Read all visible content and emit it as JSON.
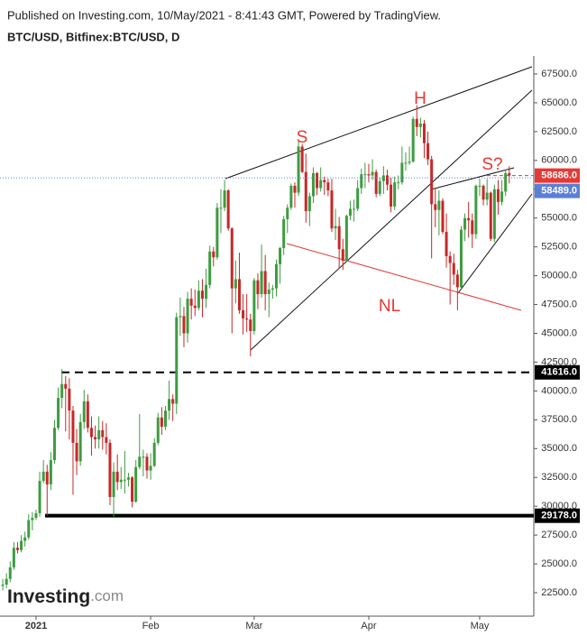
{
  "header": {
    "published": "Published on Investing.com, 10/May/2021 - 8:41:43 GMT, Powered by TradingView.",
    "symbol": "BTC/USD, Bitfinex:BTC/USD, D"
  },
  "logo": {
    "name": "Investing",
    "suffix": ".com"
  },
  "chart_data": {
    "type": "candlestick",
    "categories": [
      null,
      null,
      null,
      null,
      null,
      null,
      null,
      null,
      null,
      null,
      null,
      null,
      null,
      null,
      null,
      null,
      null,
      null,
      null,
      null,
      null,
      null,
      null,
      null,
      null,
      null,
      null,
      null,
      null,
      null,
      null,
      null,
      null,
      null,
      null,
      null,
      null,
      null,
      null,
      null,
      null,
      null,
      null,
      null,
      null,
      null,
      null,
      null,
      null,
      null,
      null,
      null,
      null,
      null,
      null,
      null,
      null,
      null,
      null,
      null,
      null,
      null,
      null,
      null,
      null,
      null,
      null,
      null,
      null,
      null,
      null,
      null,
      null,
      null,
      null,
      null,
      null,
      null,
      null,
      null,
      null,
      null,
      null,
      null,
      null,
      null,
      null,
      null,
      null,
      null,
      null,
      null,
      null,
      null,
      null,
      null,
      null,
      null,
      null,
      null,
      null,
      null,
      null,
      null,
      null,
      null,
      null,
      null,
      null,
      null,
      null,
      null,
      null,
      null,
      null,
      null,
      null,
      null,
      null,
      null,
      null,
      null,
      null,
      null,
      null,
      null,
      null,
      null,
      null,
      null,
      null,
      null,
      null,
      null,
      null,
      null,
      null,
      null
    ],
    "open": [
      23100,
      23200,
      23700,
      24700,
      26400,
      26200,
      27000,
      27300,
      28800,
      29000,
      29400,
      32200,
      33000,
      31900,
      34000,
      36800,
      39400,
      40600,
      40200,
      38300,
      35500,
      33900,
      37300,
      39100,
      36800,
      36000,
      35800,
      36600,
      36000,
      35500,
      30800,
      33000,
      32100,
      32300,
      32300,
      32500,
      30400,
      33400,
      34300,
      34300,
      33100,
      33500,
      35500,
      37700,
      36900,
      38300,
      39300,
      38900,
      46400,
      46500,
      45000,
      48000,
      47400,
      47200,
      48700,
      48000,
      49200,
      52100,
      51600,
      55900,
      55900,
      57400,
      54100,
      48900,
      49700,
      47000,
      46300,
      46200,
      45200,
      49600,
      48400,
      50400,
      48400,
      48800,
      48900,
      51000,
      52400,
      54900,
      55900,
      57800,
      57200,
      61200,
      59000,
      55600,
      56900,
      58900,
      57600,
      58300,
      58100,
      57400,
      54100,
      54300,
      52300,
      51300,
      55200,
      55800,
      55800,
      57600,
      58800,
      58800,
      58700,
      59000,
      57100,
      58200,
      58700,
      57900,
      56000,
      58100,
      58100,
      59800,
      59800,
      59900,
      63600,
      62900,
      63200,
      61500,
      60100,
      56200,
      55700,
      56500,
      53800,
      51700,
      51100,
      50100,
      49000,
      54000,
      55000,
      54800,
      53600,
      57800,
      57800,
      56600,
      57200,
      53200,
      57500,
      56400,
      57300,
      58900
    ],
    "high": [
      23700,
      24200,
      25200,
      26900,
      26900,
      27500,
      27800,
      29300,
      29500,
      29700,
      33000,
      34000,
      33600,
      34700,
      37500,
      40300,
      41900,
      41300,
      41100,
      38700,
      36700,
      38000,
      40100,
      39700,
      37800,
      37000,
      37800,
      37400,
      37200,
      35800,
      33800,
      34500,
      33400,
      34800,
      32900,
      32600,
      34000,
      38000,
      34900,
      34600,
      34600,
      35900,
      38100,
      38600,
      38700,
      40900,
      39700,
      46800,
      48100,
      47300,
      48600,
      48900,
      48800,
      49600,
      49700,
      50600,
      52600,
      52500,
      56300,
      57500,
      58300,
      57500,
      54200,
      51300,
      52000,
      48400,
      48400,
      46700,
      49800,
      50200,
      52700,
      51800,
      49400,
      49200,
      51400,
      52500,
      55200,
      56200,
      58000,
      58100,
      61700,
      61400,
      60600,
      57200,
      59400,
      59000,
      59400,
      58600,
      58400,
      58400,
      55800,
      55100,
      53200,
      55300,
      56500,
      56600,
      58300,
      59300,
      59800,
      59700,
      60100,
      59200,
      58500,
      59500,
      59200,
      58500,
      58600,
      58700,
      61200,
      60700,
      61200,
      63800,
      64800,
      63700,
      63500,
      62500,
      60400,
      57600,
      57400,
      56700,
      55400,
      52100,
      51900,
      50500,
      54300,
      55400,
      56400,
      55400,
      57900,
      58400,
      57900,
      58400,
      57300,
      57900,
      58300,
      58300,
      59200,
      59500
    ],
    "low": [
      22700,
      22900,
      23400,
      24500,
      25900,
      26000,
      26500,
      27100,
      27900,
      28800,
      29100,
      32000,
      29200,
      31400,
      33700,
      36600,
      38500,
      36500,
      35800,
      31000,
      32700,
      33500,
      36700,
      36400,
      34400,
      35000,
      35000,
      34900,
      34500,
      30100,
      29100,
      31400,
      31500,
      31100,
      31700,
      29900,
      30300,
      33200,
      32600,
      32400,
      32300,
      33400,
      35300,
      36200,
      36600,
      37500,
      37400,
      38000,
      44800,
      43800,
      44200,
      46200,
      46500,
      47000,
      46400,
      47200,
      48900,
      50800,
      51400,
      53700,
      55600,
      53900,
      45000,
      47600,
      46700,
      44900,
      45100,
      43000,
      44900,
      47100,
      48100,
      47000,
      46400,
      48000,
      48200,
      49300,
      51800,
      53700,
      55700,
      55900,
      56900,
      58900,
      54600,
      54300,
      56300,
      57000,
      57300,
      57000,
      56900,
      53800,
      53100,
      50600,
      50500,
      51200,
      54800,
      54700,
      55600,
      57100,
      57600,
      58100,
      58300,
      56800,
      56900,
      57100,
      57400,
      55500,
      55700,
      57500,
      57900,
      59100,
      59600,
      59800,
      62100,
      62000,
      60200,
      59600,
      51500,
      54200,
      53500,
      53600,
      50700,
      47500,
      49200,
      47000,
      48800,
      53000,
      53300,
      52400,
      53200,
      56900,
      56100,
      56100,
      53000,
      52900,
      55300,
      56100,
      56900,
      58000
    ],
    "close": [
      23200,
      23700,
      24700,
      26400,
      26200,
      27000,
      27300,
      28800,
      29000,
      29400,
      32200,
      33000,
      31900,
      34000,
      36800,
      39400,
      40600,
      40200,
      38300,
      35500,
      33900,
      37300,
      39100,
      36800,
      36000,
      35800,
      36600,
      36000,
      35500,
      30800,
      33000,
      32100,
      32300,
      32300,
      32500,
      30400,
      33400,
      34300,
      34300,
      33100,
      33500,
      35500,
      37700,
      36900,
      38300,
      39300,
      38900,
      46400,
      46500,
      45000,
      48000,
      47400,
      47200,
      48700,
      48000,
      49200,
      52100,
      51600,
      55900,
      55900,
      57400,
      54100,
      48900,
      49700,
      47000,
      46300,
      46200,
      45200,
      49600,
      48400,
      50400,
      48400,
      48800,
      48900,
      51000,
      52400,
      54900,
      55900,
      57800,
      57200,
      61200,
      59000,
      55600,
      56900,
      58900,
      57600,
      58300,
      58100,
      57400,
      54100,
      54300,
      52300,
      51300,
      55200,
      55800,
      55800,
      57600,
      58800,
      58800,
      58700,
      59000,
      57100,
      58200,
      58700,
      57900,
      56000,
      58100,
      58100,
      59800,
      59800,
      59900,
      63600,
      62900,
      63200,
      61500,
      60100,
      56200,
      55700,
      56500,
      53800,
      51700,
      51100,
      50100,
      49000,
      54000,
      55000,
      54800,
      53600,
      57800,
      57800,
      56600,
      57200,
      53200,
      57500,
      56400,
      57300,
      58900,
      58686
    ],
    "up_color": "#3d9c40",
    "down_color": "#c62828",
    "xlim": [
      -0.75,
      143.4
    ],
    "xticks": [
      {
        "value": 9,
        "label": "2021"
      },
      {
        "value": 40,
        "label": "Feb"
      },
      {
        "value": 68,
        "label": "Mar"
      },
      {
        "value": 99,
        "label": "Apr"
      },
      {
        "value": 129,
        "label": "May"
      }
    ],
    "ylim": [
      20466,
      69065
    ],
    "yticks": [
      {
        "value": 22500,
        "label": "22500.0"
      },
      {
        "value": 25000,
        "label": "25000.0"
      },
      {
        "value": 27500,
        "label": "27500.0"
      },
      {
        "value": 30000,
        "label": "30000.0"
      },
      {
        "value": 32500,
        "label": "32500.0"
      },
      {
        "value": 35000,
        "label": "35000.0"
      },
      {
        "value": 37500,
        "label": "37500.0"
      },
      {
        "value": 40000,
        "label": "40000.0"
      },
      {
        "value": 42500,
        "label": "42500.0"
      },
      {
        "value": 45000,
        "label": "45000.0"
      },
      {
        "value": 47500,
        "label": "47500.0"
      },
      {
        "value": 50000,
        "label": "50000.0"
      },
      {
        "value": 52500,
        "label": "52500.0"
      },
      {
        "value": 55000,
        "label": "55000.0"
      },
      {
        "value": 57500,
        "label": "57500.0"
      },
      {
        "value": 60000,
        "label": "60000.0"
      },
      {
        "value": 62500,
        "label": "62500.0"
      },
      {
        "value": 65000,
        "label": "65000.0"
      },
      {
        "value": 67500,
        "label": "67500.0"
      }
    ],
    "levels": [
      {
        "value": 41616,
        "label": "41616.0",
        "style": "dashed"
      },
      {
        "value": 29178,
        "label": "29178.0",
        "style": "thick"
      }
    ],
    "price_tags": [
      {
        "value": 58686,
        "label": "58686.0",
        "color": "#e53935"
      },
      {
        "value": 58489,
        "label": "58489.0",
        "color": "#5b7fd6"
      }
    ],
    "annotations": {
      "left_shoulder": "S",
      "head": "H",
      "right_shoulder": "S?",
      "neckline": "NL"
    }
  }
}
